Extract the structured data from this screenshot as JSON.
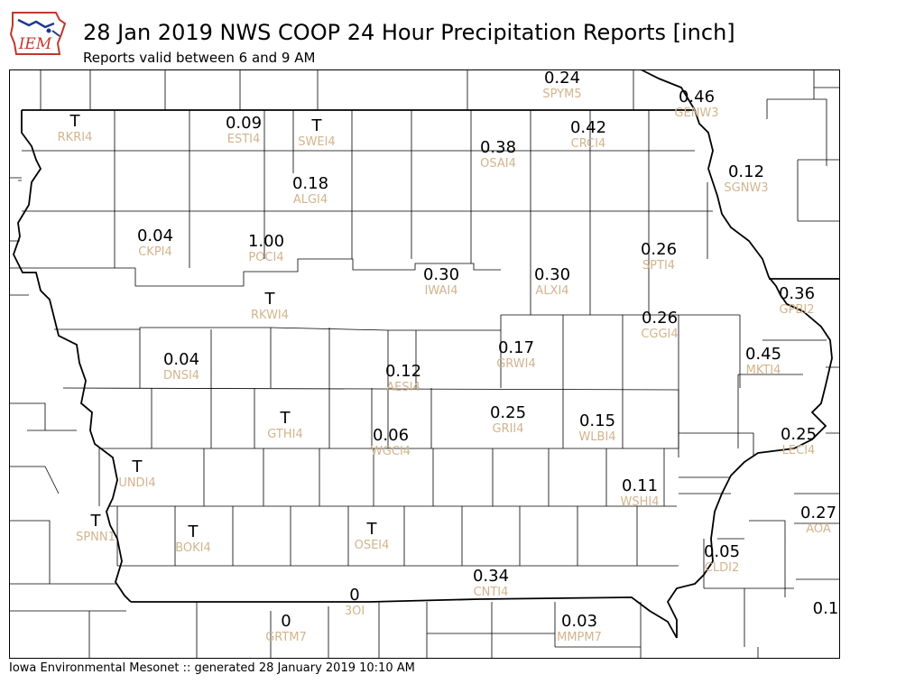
{
  "header": {
    "title": "28 Jan 2019 NWS COOP 24 Hour Precipitation Reports [inch]",
    "subtitle": "Reports valid between 6 and 9 AM",
    "logo_text": "IEM"
  },
  "footer": {
    "text": "Iowa Environmental Mesonet :: generated 28 January 2019 10:10 AM"
  },
  "colors": {
    "station_id": "#d2b48c",
    "value": "#000000",
    "logo_blue": "#1e3a8a",
    "logo_red": "#c0392b"
  },
  "stations": [
    {
      "value": "0.24",
      "id": "SPYM5"
    },
    {
      "value": "0.46",
      "id": "GENW3"
    },
    {
      "value": "T",
      "id": "RKRI4"
    },
    {
      "value": "0.09",
      "id": "ESTI4"
    },
    {
      "value": "T",
      "id": "SWEI4"
    },
    {
      "value": "0.42",
      "id": "CRCI4"
    },
    {
      "value": "0.38",
      "id": "OSAI4"
    },
    {
      "value": "0.12",
      "id": "SGNW3"
    },
    {
      "value": "0.18",
      "id": "ALGI4"
    },
    {
      "value": "0.04",
      "id": "CKPI4"
    },
    {
      "value": "1.00",
      "id": "POCI4"
    },
    {
      "value": "0.26",
      "id": "SPTI4"
    },
    {
      "value": "0.30",
      "id": "IWAI4"
    },
    {
      "value": "0.30",
      "id": "ALXI4"
    },
    {
      "value": "T",
      "id": "RKWI4"
    },
    {
      "value": "0.36",
      "id": "GPBI2"
    },
    {
      "value": "0.26",
      "id": "CGGI4"
    },
    {
      "value": "0.17",
      "id": "GRWI4"
    },
    {
      "value": "0.45",
      "id": "MKTI4"
    },
    {
      "value": "0.04",
      "id": "DNSI4"
    },
    {
      "value": "0.12",
      "id": "AESI4"
    },
    {
      "value": "0.25",
      "id": "GRII4"
    },
    {
      "value": "0.15",
      "id": "WLBI4"
    },
    {
      "value": "T",
      "id": "GTHI4"
    },
    {
      "value": "0.06",
      "id": "WGCI4"
    },
    {
      "value": "0.25",
      "id": "LECI4"
    },
    {
      "value": "T",
      "id": "UNDI4"
    },
    {
      "value": "0.11",
      "id": "WSHI4"
    },
    {
      "value": "T",
      "id": "SPNN1"
    },
    {
      "value": "T",
      "id": "BOKI4"
    },
    {
      "value": "T",
      "id": "OSEI4"
    },
    {
      "value": "0.27",
      "id": "AOA"
    },
    {
      "value": "0.05",
      "id": "CLDI2"
    },
    {
      "value": "0.34",
      "id": "CNTI4"
    },
    {
      "value": "0",
      "id": "3OI"
    },
    {
      "value": "0",
      "id": "GRTM7"
    },
    {
      "value": "0.03",
      "id": "MMPM7"
    },
    {
      "value": "0.1",
      "id": ""
    }
  ]
}
